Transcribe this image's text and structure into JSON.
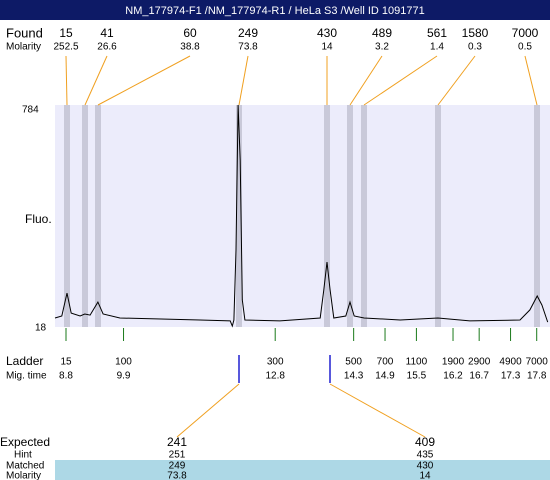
{
  "header": {
    "title": "NM_177974-F1 /NM_177974-R1 / HeLa S3 /Well ID 1091771"
  },
  "found": {
    "label": "Found",
    "molarity_label": "Molarity",
    "peaks": [
      {
        "size": 15,
        "molarity": 252.5
      },
      {
        "size": 41,
        "molarity": 26.6
      },
      {
        "size": 60,
        "molarity": 38.8
      },
      {
        "size": 249,
        "molarity": 73.8
      },
      {
        "size": 430,
        "molarity": 14
      },
      {
        "size": 489,
        "molarity": 3.2
      },
      {
        "size": 561,
        "molarity": 1.4
      },
      {
        "size": 1580,
        "molarity": 0.3
      },
      {
        "size": 7000,
        "molarity": 0.5
      }
    ]
  },
  "fluo": {
    "label": "Fluo.",
    "ylim": [
      18,
      784
    ],
    "trace": {
      "x": [
        8.59,
        8.72,
        8.82,
        8.9,
        9.07,
        9.16,
        9.26,
        9.41,
        9.51,
        9.83,
        11.36,
        11.94,
        11.98,
        12.01,
        12.05,
        12.09,
        12.13,
        12.17,
        12.22,
        12.89,
        13.66,
        13.73,
        13.79,
        13.85,
        13.92,
        14.15,
        14.23,
        14.31,
        14.5,
        15.19,
        15.91,
        16.52,
        17.48,
        17.67,
        17.81,
        17.9,
        18.01
      ],
      "values": [
        49,
        56,
        135,
        66,
        56,
        63,
        59,
        104,
        63,
        49,
        42,
        39,
        21,
        42,
        284,
        784,
        594,
        111,
        42,
        39,
        49,
        146,
        242,
        146,
        49,
        56,
        104,
        56,
        49,
        42,
        49,
        39,
        42,
        77,
        125,
        94,
        35
      ]
    }
  },
  "ladder": {
    "label": "Ladder",
    "time_label": "Mig. time",
    "bands": [
      {
        "size": 15,
        "time": 8.8
      },
      {
        "size": 100,
        "time": 9.9
      },
      {
        "size": 300,
        "time": 12.8
      },
      {
        "size": 500,
        "time": 14.3
      },
      {
        "size": 700,
        "time": 14.9
      },
      {
        "size": 1100,
        "time": 15.5
      },
      {
        "size": 1900,
        "time": 16.2
      },
      {
        "size": 2900,
        "time": 16.7
      },
      {
        "size": 4900,
        "time": 17.3
      },
      {
        "size": 7000,
        "time": 17.8
      }
    ]
  },
  "expected": {
    "label": "Expected",
    "hint_label": "Hint",
    "matched_label": "Matched",
    "molarity_label": "Molarity",
    "columns": [
      {
        "expected": 241,
        "hint": 251,
        "matched": 249,
        "molarity": 73.8
      },
      {
        "expected": 409,
        "hint": 435,
        "matched": 430,
        "molarity": 14
      }
    ]
  }
}
